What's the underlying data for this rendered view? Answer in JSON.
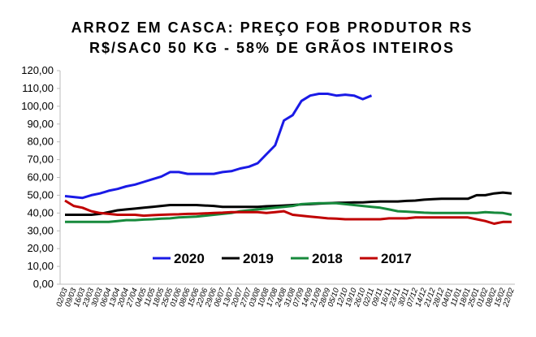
{
  "chart_data": {
    "type": "line",
    "title": [
      "ARROZ EM CASCA: PREÇO FOB PRODUTOR RS",
      "R$/SAC0 50 KG - 58% DE GRÃOS INTEIROS"
    ],
    "categories": [
      "02/03",
      "09/03",
      "16/03",
      "23/03",
      "30/03",
      "06/04",
      "13/04",
      "20/04",
      "27/04",
      "04/05",
      "11/05",
      "18/05",
      "25/05",
      "01/06",
      "08/06",
      "15/06",
      "22/06",
      "29/06",
      "06/07",
      "13/07",
      "20/07",
      "27/07",
      "03/08",
      "10/08",
      "17/08",
      "24/08",
      "31/08",
      "07/09",
      "14/09",
      "21/09",
      "28/09",
      "05/10",
      "12/10",
      "19/10",
      "26/10",
      "02/11",
      "09/11",
      "16/11",
      "23/11",
      "30/11",
      "07/12",
      "14/12",
      "21/12",
      "28/12",
      "04/01",
      "11/01",
      "18/01",
      "25/01",
      "01/02",
      "08/02",
      "15/02",
      "22/02"
    ],
    "series": [
      {
        "name": "2020",
        "color": "#1a1ae6",
        "values": [
          49.5,
          49,
          48.5,
          50,
          51,
          52.5,
          53.5,
          55,
          56,
          57.5,
          59,
          60.5,
          63,
          63,
          62,
          62,
          62,
          62,
          63,
          63.5,
          65,
          66,
          68,
          73,
          78,
          92,
          95,
          103,
          106,
          107,
          107,
          106,
          106.5,
          106,
          104,
          106,
          null,
          null,
          null,
          null,
          null,
          null,
          null,
          null,
          null,
          null,
          null,
          null,
          null,
          null,
          null,
          null
        ]
      },
      {
        "name": "2019",
        "color": "#000000",
        "values": [
          39,
          39,
          39,
          39,
          39.5,
          40.5,
          41.5,
          42,
          42.5,
          43,
          43.5,
          44,
          44.5,
          44.5,
          44.5,
          44.5,
          44.2,
          44,
          43.5,
          43.5,
          43.5,
          43.5,
          43.5,
          43.8,
          44,
          44.2,
          44.5,
          44.8,
          45,
          45.3,
          45.5,
          45.7,
          45.8,
          46,
          46,
          46.3,
          46.5,
          46.5,
          46.5,
          46.8,
          47,
          47.5,
          47.8,
          48,
          48,
          48,
          48,
          50,
          50,
          51,
          51.5,
          51
        ]
      },
      {
        "name": "2018",
        "color": "#178a3c",
        "values": [
          35,
          35,
          35,
          35,
          35,
          35,
          35.5,
          36,
          36,
          36.3,
          36.5,
          36.8,
          37,
          37.5,
          37.8,
          38,
          38.5,
          39,
          39.5,
          40,
          41,
          41.5,
          42,
          42.5,
          43,
          43.5,
          44,
          45,
          45.3,
          45.5,
          45.5,
          45.5,
          45,
          44.5,
          44,
          43.5,
          43,
          42,
          41,
          40.8,
          40.5,
          40.2,
          40,
          40,
          40,
          40,
          40,
          40,
          40.5,
          40.2,
          40,
          39
        ]
      },
      {
        "name": "2017",
        "color": "#c00000",
        "values": [
          47,
          44,
          43,
          41,
          40,
          39.5,
          39,
          39,
          39,
          38.5,
          38.8,
          39,
          39.2,
          39.3,
          39.5,
          39.6,
          39.8,
          40,
          40.2,
          40.5,
          40.5,
          40.5,
          40.5,
          40,
          40.5,
          41,
          39,
          38.5,
          38,
          37.5,
          37,
          36.8,
          36.5,
          36.5,
          36.5,
          36.5,
          36.5,
          37,
          37,
          37,
          37.5,
          37.5,
          37.5,
          37.5,
          37.5,
          37.5,
          37.5,
          36.5,
          35.5,
          34,
          35,
          35
        ]
      }
    ],
    "ylim": [
      0,
      120
    ],
    "yticks": [
      {
        "value": 0,
        "label": "0,00"
      },
      {
        "value": 10,
        "label": "10,00"
      },
      {
        "value": 20,
        "label": "20,00"
      },
      {
        "value": 30,
        "label": "30,00"
      },
      {
        "value": 40,
        "label": "40,00"
      },
      {
        "value": 50,
        "label": "50,00"
      },
      {
        "value": 60,
        "label": "60,00"
      },
      {
        "value": 70,
        "label": "70,00"
      },
      {
        "value": 80,
        "label": "80,00"
      },
      {
        "value": 90,
        "label": "90,00"
      },
      {
        "value": 100,
        "label": "100,00"
      },
      {
        "value": 110,
        "label": "110,00"
      },
      {
        "value": 120,
        "label": "120,00"
      }
    ],
    "grid": false,
    "legend": "bottom"
  }
}
